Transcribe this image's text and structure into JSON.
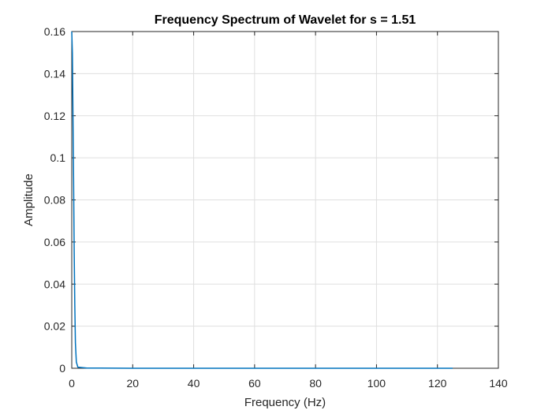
{
  "chart_data": {
    "type": "line",
    "title": "Frequency Spectrum of Wavelet for s = 1.51",
    "xlabel": "Frequency (Hz)",
    "ylabel": "Amplitude",
    "xlim": [
      0,
      140
    ],
    "ylim": [
      0,
      0.16
    ],
    "xticks": [
      0,
      20,
      40,
      60,
      80,
      100,
      120,
      140
    ],
    "xtick_labels": [
      "0",
      "20",
      "40",
      "60",
      "80",
      "100",
      "120",
      "140"
    ],
    "yticks": [
      0,
      0.02,
      0.04,
      0.06,
      0.08,
      0.1,
      0.12,
      0.14,
      0.16
    ],
    "ytick_labels": [
      "0",
      "0.02",
      "0.04",
      "0.06",
      "0.08",
      "0.1",
      "0.12",
      "0.14",
      "0.16"
    ],
    "grid": true,
    "series": [
      {
        "color": "#0072BD",
        "x": [
          0,
          0.2,
          0.4,
          0.6,
          0.8,
          1.0,
          1.2,
          1.5,
          2,
          5,
          20,
          60,
          100,
          125
        ],
        "y": [
          0.16,
          0.15,
          0.12,
          0.09,
          0.055,
          0.03,
          0.012,
          0.003,
          0.0005,
          0.0001,
          0,
          0,
          0,
          0
        ]
      }
    ]
  }
}
